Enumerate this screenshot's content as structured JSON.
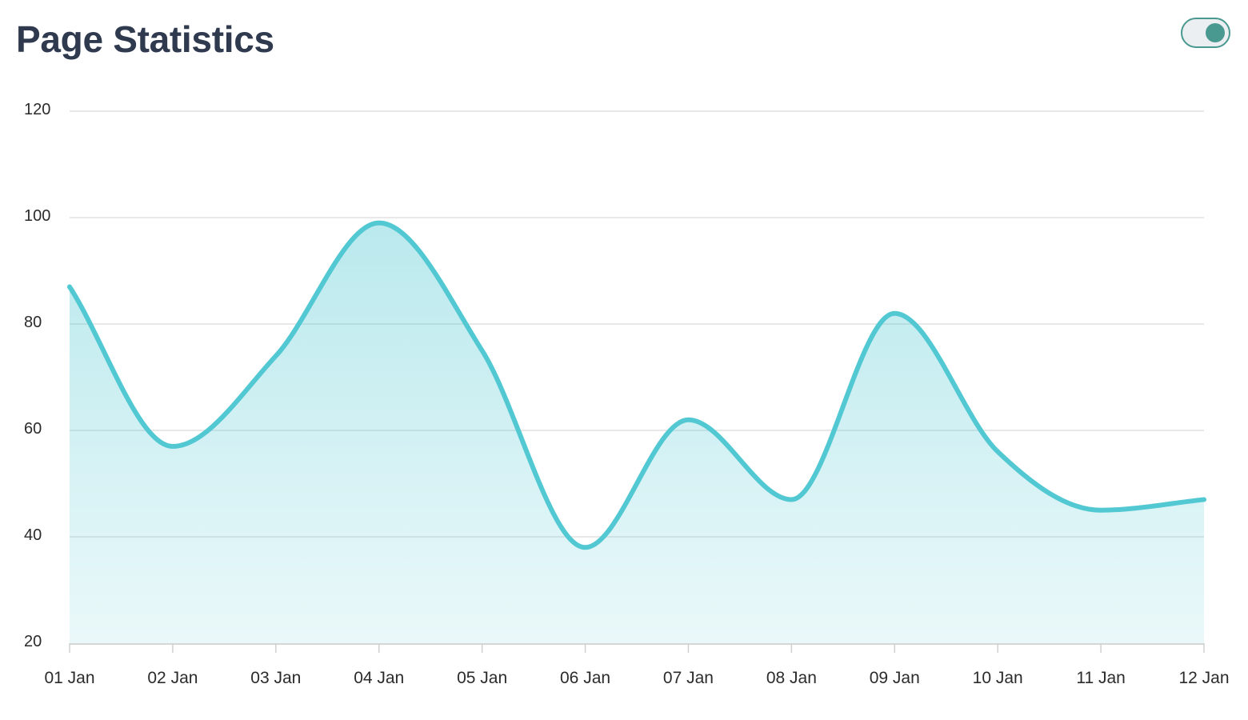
{
  "header": {
    "title": "Page Statistics",
    "toggle": {
      "on": true,
      "color": "#4a9990"
    }
  },
  "chart_data": {
    "type": "area",
    "categories": [
      "01 Jan",
      "02 Jan",
      "03 Jan",
      "04 Jan",
      "05 Jan",
      "06 Jan",
      "07 Jan",
      "08 Jan",
      "09 Jan",
      "10 Jan",
      "11 Jan",
      "12 Jan"
    ],
    "series": [
      {
        "values": [
          87,
          57,
          74,
          99,
          75,
          38,
          62,
          47,
          82,
          56,
          45,
          47
        ]
      }
    ],
    "yticks": [
      20,
      40,
      60,
      80,
      100,
      120
    ],
    "ylim": [
      20,
      120
    ],
    "grid": true,
    "line_color": "#52c8d3",
    "fill_color": "#52c8d3",
    "title": "",
    "xlabel": "",
    "ylabel": ""
  }
}
